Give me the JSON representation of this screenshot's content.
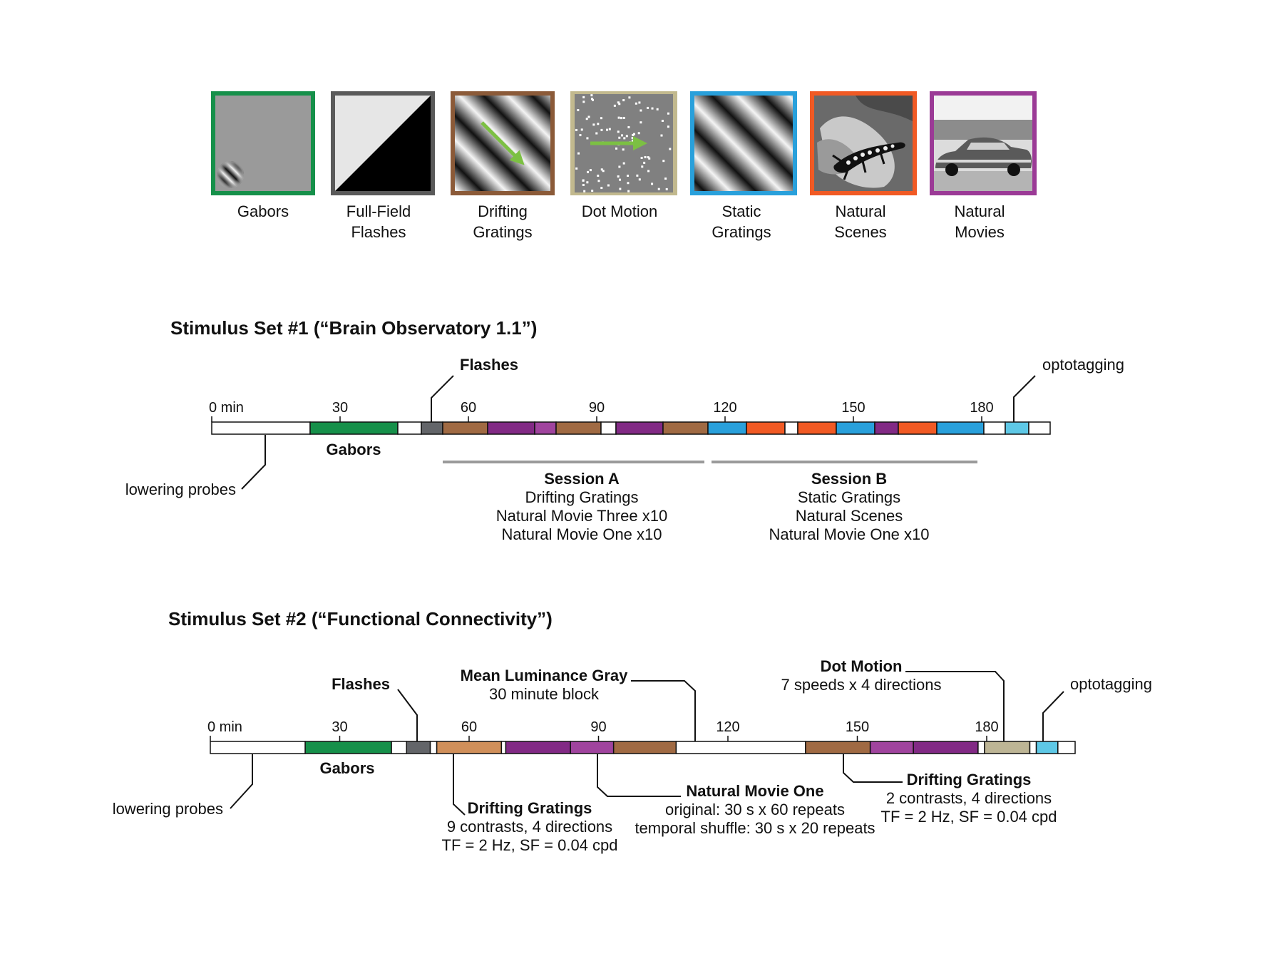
{
  "colors": {
    "green": "#16904a",
    "dark_gray": "#636569",
    "brown": "#a06a43",
    "purple": "#822a85",
    "magenta": "#a0449e",
    "blue": "#29a0db",
    "orange": "#f15a24",
    "cyan": "#5ec8e6",
    "tan": "#bdb595",
    "light_brown": "#d08f5a",
    "rule_gray": "#9a9a9a"
  },
  "legend": [
    {
      "id": "gabors",
      "lines": [
        "Gabors"
      ],
      "border": "#16904a",
      "icon": "gabor-patch-icon"
    },
    {
      "id": "full-field-flashes",
      "lines": [
        "Full-Field",
        "Flashes"
      ],
      "border": "#5a5a5a",
      "icon": "split-flash-icon"
    },
    {
      "id": "drifting-gratings",
      "lines": [
        "Drifting",
        "Gratings"
      ],
      "border": "#8b5a38",
      "icon": "drifting-grating-arrow-icon"
    },
    {
      "id": "dot-motion",
      "lines": [
        "Dot Motion"
      ],
      "border": "#c2b98e",
      "icon": "dot-field-arrow-icon"
    },
    {
      "id": "static-gratings",
      "lines": [
        "Static",
        "Gratings"
      ],
      "border": "#29a0db",
      "icon": "static-grating-icon"
    },
    {
      "id": "natural-scenes",
      "lines": [
        "Natural",
        "Scenes"
      ],
      "border": "#f15a24",
      "icon": "lizard-photo-icon"
    },
    {
      "id": "natural-movies",
      "lines": [
        "Natural",
        "Movies"
      ],
      "border": "#9b3a96",
      "icon": "car-movie-still-icon"
    }
  ],
  "set1": {
    "title": "Stimulus Set #1 (“Brain Observatory 1.1”)",
    "ticks": [
      {
        "label": "0 min",
        "value": 0
      },
      {
        "label": "30",
        "value": 30
      },
      {
        "label": "60",
        "value": 60
      },
      {
        "label": "90",
        "value": 90
      },
      {
        "label": "120",
        "value": 120
      },
      {
        "label": "150",
        "value": 150
      },
      {
        "label": "180",
        "value": 180
      }
    ],
    "segments": [
      {
        "start": 0,
        "end": 23,
        "color": "#ffffff",
        "label": "lowering probes"
      },
      {
        "start": 23,
        "end": 43.5,
        "color": "#16904a",
        "label": "Gabors"
      },
      {
        "start": 43.5,
        "end": 49,
        "color": "#ffffff"
      },
      {
        "start": 49,
        "end": 54,
        "color": "#636569",
        "label": "Flashes"
      },
      {
        "start": 54,
        "end": 64.5,
        "color": "#a06a43"
      },
      {
        "start": 64.5,
        "end": 75.5,
        "color": "#822a85"
      },
      {
        "start": 75.5,
        "end": 80.5,
        "color": "#a0449e"
      },
      {
        "start": 80.5,
        "end": 91,
        "color": "#a06a43"
      },
      {
        "start": 91,
        "end": 94.5,
        "color": "#ffffff"
      },
      {
        "start": 94.5,
        "end": 105.5,
        "color": "#822a85"
      },
      {
        "start": 105.5,
        "end": 116,
        "color": "#a06a43"
      },
      {
        "start": 116,
        "end": 125,
        "color": "#29a0db"
      },
      {
        "start": 125,
        "end": 134,
        "color": "#f15a24"
      },
      {
        "start": 134,
        "end": 137,
        "color": "#ffffff"
      },
      {
        "start": 137,
        "end": 146,
        "color": "#f15a24"
      },
      {
        "start": 146,
        "end": 155,
        "color": "#29a0db"
      },
      {
        "start": 155,
        "end": 160.5,
        "color": "#822a85"
      },
      {
        "start": 160.5,
        "end": 169.5,
        "color": "#f15a24"
      },
      {
        "start": 169.5,
        "end": 180.5,
        "color": "#29a0db"
      },
      {
        "start": 180.5,
        "end": 185.5,
        "color": "#ffffff"
      },
      {
        "start": 185.5,
        "end": 191,
        "color": "#5ec8e6",
        "label": "optotagging"
      },
      {
        "start": 191,
        "end": 196,
        "color": "#ffffff"
      }
    ],
    "labels": {
      "flashes": "Flashes",
      "optotagging": "optotagging",
      "gabors": "Gabors",
      "lowering": "lowering probes"
    },
    "sessions": [
      {
        "id": "a",
        "start": 54,
        "end": 116,
        "title": "Session A",
        "lines": [
          "Drifting Gratings",
          "Natural Movie Three x10",
          "Natural Movie One x10"
        ]
      },
      {
        "id": "b",
        "start": 117,
        "end": 180,
        "title": "Session B",
        "lines": [
          "Static Gratings",
          "Natural Scenes",
          "Natural Movie One x10"
        ]
      }
    ]
  },
  "set2": {
    "title": "Stimulus Set #2 (“Functional Connectivity”)",
    "ticks": [
      {
        "label": "0 min",
        "value": 0
      },
      {
        "label": "30",
        "value": 30
      },
      {
        "label": "60",
        "value": 60
      },
      {
        "label": "90",
        "value": 90
      },
      {
        "label": "120",
        "value": 120
      },
      {
        "label": "150",
        "value": 150
      },
      {
        "label": "180",
        "value": 180
      }
    ],
    "segments": [
      {
        "start": 0,
        "end": 22,
        "color": "#ffffff",
        "label": "lowering probes"
      },
      {
        "start": 22,
        "end": 42,
        "color": "#16904a",
        "label": "Gabors"
      },
      {
        "start": 42,
        "end": 45.5,
        "color": "#ffffff"
      },
      {
        "start": 45.5,
        "end": 51,
        "color": "#636569",
        "label": "Flashes"
      },
      {
        "start": 51,
        "end": 52.5,
        "color": "#ffffff"
      },
      {
        "start": 52.5,
        "end": 67.5,
        "color": "#d08f5a",
        "label": "Drifting Gratings"
      },
      {
        "start": 67.5,
        "end": 68.5,
        "color": "#ffffff"
      },
      {
        "start": 68.5,
        "end": 83.5,
        "color": "#822a85"
      },
      {
        "start": 83.5,
        "end": 93.5,
        "color": "#a0449e"
      },
      {
        "start": 93.5,
        "end": 108,
        "color": "#a06a43"
      },
      {
        "start": 108,
        "end": 138,
        "color": "#ffffff",
        "label": "Mean Luminance Gray"
      },
      {
        "start": 138,
        "end": 153,
        "color": "#a06a43"
      },
      {
        "start": 153,
        "end": 163,
        "color": "#a0449e"
      },
      {
        "start": 163,
        "end": 178,
        "color": "#822a85"
      },
      {
        "start": 178,
        "end": 179.5,
        "color": "#ffffff"
      },
      {
        "start": 179.5,
        "end": 190,
        "color": "#bdb595",
        "label": "Dot Motion"
      },
      {
        "start": 190,
        "end": 191.5,
        "color": "#ffffff"
      },
      {
        "start": 191.5,
        "end": 196.5,
        "color": "#5ec8e6",
        "label": "optotagging"
      },
      {
        "start": 196.5,
        "end": 200.5,
        "color": "#ffffff"
      }
    ],
    "labels": {
      "flashes": "Flashes",
      "mean_gray_title": "Mean Luminance Gray",
      "mean_gray_sub": "30 minute block",
      "dot_motion_title": "Dot Motion",
      "dot_motion_sub": "7 speeds x 4 directions",
      "optotagging": "optotagging",
      "gabors": "Gabors",
      "lowering": "lowering probes",
      "dg1_title": "Drifting Gratings",
      "dg1_line1": "9 contrasts, 4 directions",
      "dg1_line2": "TF = 2 Hz, SF = 0.04 cpd",
      "nm1_title": "Natural Movie One",
      "nm1_line1": "original: 30 s x 60 repeats",
      "nm1_line2": "temporal shuffle: 30 s x 20 repeats",
      "dg2_title": "Drifting Gratings",
      "dg2_line1": "2 contrasts, 4 directions",
      "dg2_line2": "TF = 2 Hz, SF = 0.04 cpd"
    }
  }
}
